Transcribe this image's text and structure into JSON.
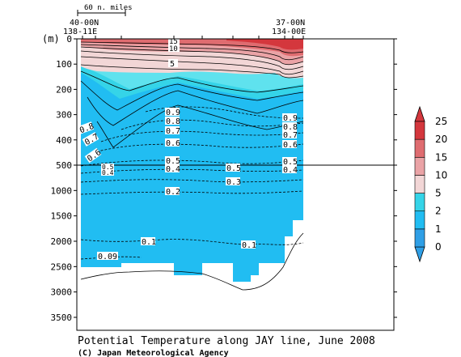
{
  "chart_data": {
    "type": "heatmap",
    "title": "Potential Temperature along JAY line, June 2008",
    "credit": "(C) Japan Meteorological Agency",
    "ylabel": "(m)",
    "scale_bar_label": "60 n. miles",
    "left_station": {
      "lat": "40-00N",
      "lon": "138-11E"
    },
    "right_station": {
      "lat": "37-00N",
      "lon": "134-00E"
    },
    "y_ticks_upper": [
      0,
      100,
      200,
      300,
      400,
      500
    ],
    "y_ticks_lower": [
      1000,
      1500,
      2000,
      2500,
      3000,
      3500
    ],
    "colorbar": {
      "levels": [
        0,
        1,
        2,
        5,
        10,
        15,
        20,
        25
      ],
      "colors": [
        "#2f9fe6",
        "#21bdf2",
        "#35d4e8",
        "#f2d6d6",
        "#eaa3a6",
        "#df6c70",
        "#d4373d"
      ]
    },
    "contour_labels": [
      {
        "depth": 10,
        "value": "10"
      },
      {
        "depth": 5,
        "value": "15"
      },
      {
        "depth": 45,
        "value": "5"
      },
      {
        "depth": 300,
        "value": "0.9"
      },
      {
        "depth": 330,
        "value": "0.8"
      },
      {
        "depth": 360,
        "value": "0.7"
      },
      {
        "depth": 400,
        "value": "0.6"
      },
      {
        "depth": 480,
        "value": "0.5"
      },
      {
        "depth": 520,
        "value": "0.4"
      },
      {
        "depth": 750,
        "value": "0.3"
      },
      {
        "depth": 1000,
        "value": "0.2"
      },
      {
        "depth": 2000,
        "value": "0.1"
      },
      {
        "depth": 2340,
        "value": "0.09"
      }
    ]
  }
}
